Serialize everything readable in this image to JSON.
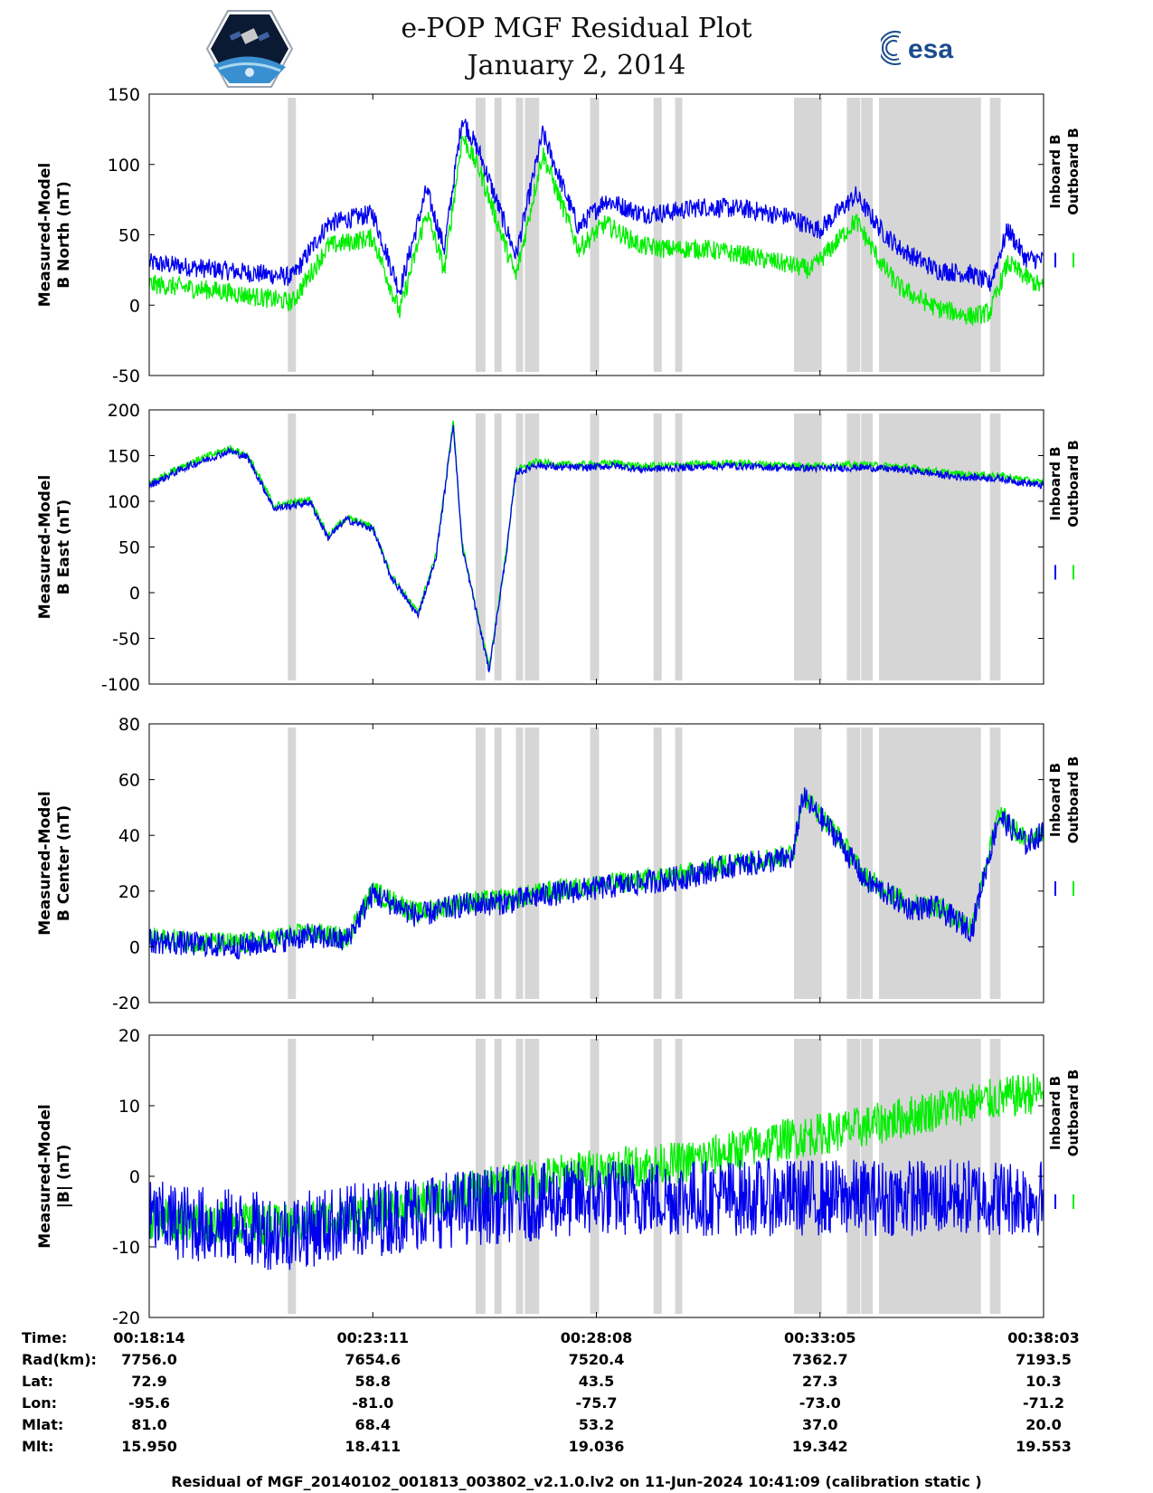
{
  "title": "e-POP MGF Residual Plot",
  "subtitle": "January 2, 2014",
  "logos": {
    "left": "cassiope-mission-patch",
    "right": "esa",
    "right_text": "esa"
  },
  "colors": {
    "inboard": "#0000ee",
    "outboard": "#00ee00",
    "gap": "#d6d6d6",
    "axis": "#000000"
  },
  "legend": {
    "inboard": "Inboard B",
    "outboard": "Outboard B"
  },
  "chart_data": [
    {
      "type": "line",
      "ylabel": [
        "Measured-Model",
        "B North (nT)"
      ],
      "ylim": [
        -50,
        150
      ],
      "yticks": [
        -50,
        0,
        50,
        100,
        150
      ],
      "xlim": [
        0,
        100
      ],
      "series": [
        {
          "name": "Inboard B",
          "color": "#0000ee",
          "x": [
            0,
            8,
            16,
            20,
            25,
            28,
            31,
            33,
            35,
            37,
            41,
            44,
            48,
            51,
            55,
            58,
            62,
            67,
            72,
            74,
            75,
            79,
            82,
            84,
            88,
            92,
            94,
            96,
            98,
            100
          ],
          "y": [
            30,
            25,
            20,
            58,
            65,
            10,
            82,
            40,
            133,
            107,
            35,
            122,
            55,
            75,
            65,
            66,
            70,
            68,
            62,
            55,
            54,
            78,
            52,
            40,
            25,
            22,
            15,
            54,
            33,
            32
          ],
          "noise": 7
        },
        {
          "name": "Outboard B",
          "color": "#00ee00",
          "x": [
            0,
            8,
            16,
            20,
            25,
            28,
            31,
            33,
            35,
            37,
            41,
            44,
            48,
            51,
            55,
            58,
            62,
            67,
            72,
            74,
            75,
            79,
            82,
            84,
            88,
            92,
            94,
            96,
            98,
            100
          ],
          "y": [
            15,
            10,
            2,
            42,
            48,
            -5,
            66,
            25,
            120,
            95,
            20,
            108,
            40,
            58,
            42,
            40,
            40,
            35,
            28,
            25,
            32,
            60,
            28,
            12,
            -2,
            -8,
            -5,
            30,
            20,
            12
          ],
          "noise": 7
        }
      ]
    },
    {
      "type": "line",
      "ylabel": [
        "Measured-Model",
        "B East (nT)"
      ],
      "ylim": [
        -100,
        200
      ],
      "yticks": [
        -100,
        -50,
        0,
        50,
        100,
        150,
        200
      ],
      "xlim": [
        0,
        100
      ],
      "series": [
        {
          "name": "Outboard B",
          "color": "#00ee00",
          "x": [
            0,
            4,
            9,
            11,
            14,
            18,
            20,
            22,
            25,
            27,
            30,
            32,
            33,
            34,
            35,
            38,
            40,
            41,
            42,
            43,
            46,
            49,
            52,
            55,
            60,
            65,
            70,
            75,
            80,
            85,
            90,
            95,
            100
          ],
          "y": [
            120,
            140,
            158,
            150,
            95,
            102,
            62,
            82,
            72,
            20,
            -22,
            38,
            110,
            188,
            52,
            -82,
            50,
            135,
            137,
            143,
            140,
            140,
            142,
            138,
            140,
            142,
            140,
            139,
            140,
            137,
            130,
            128,
            120
          ],
          "noise": 4
        },
        {
          "name": "Inboard B",
          "color": "#0000ee",
          "x": [
            0,
            4,
            9,
            11,
            14,
            18,
            20,
            22,
            25,
            27,
            30,
            32,
            33,
            34,
            35,
            38,
            40,
            41,
            42,
            43,
            46,
            49,
            52,
            55,
            60,
            65,
            70,
            75,
            80,
            85,
            90,
            95,
            100
          ],
          "y": [
            117,
            137,
            155,
            148,
            92,
            99,
            60,
            80,
            70,
            18,
            -25,
            35,
            108,
            185,
            50,
            -85,
            48,
            132,
            134,
            140,
            137,
            137,
            139,
            135,
            137,
            139,
            137,
            136,
            137,
            134,
            127,
            125,
            117
          ],
          "noise": 4
        }
      ]
    },
    {
      "type": "line",
      "ylabel": [
        "Measured-Model",
        "B Center (nT)"
      ],
      "ylim": [
        -20,
        80
      ],
      "yticks": [
        -20,
        0,
        20,
        40,
        60,
        80
      ],
      "xlim": [
        0,
        100
      ],
      "series": [
        {
          "name": "Outboard B",
          "color": "#00ee00",
          "x": [
            0,
            10,
            18,
            22,
            25,
            30,
            35,
            40,
            45,
            50,
            55,
            60,
            65,
            70,
            72,
            73,
            77,
            80,
            85,
            88,
            92,
            93,
            95,
            98,
            100
          ],
          "y": [
            3,
            1,
            5,
            3,
            20,
            12,
            16,
            17,
            20,
            22,
            24,
            26,
            30,
            32,
            33,
            55,
            40,
            25,
            15,
            15,
            7,
            22,
            48,
            38,
            42
          ],
          "noise": 4
        },
        {
          "name": "Inboard B",
          "color": "#0000ee",
          "x": [
            0,
            10,
            18,
            22,
            25,
            30,
            35,
            40,
            45,
            50,
            55,
            60,
            65,
            70,
            72,
            73,
            77,
            80,
            85,
            88,
            92,
            93,
            95,
            98,
            100
          ],
          "y": [
            2,
            0,
            4,
            2,
            19,
            11,
            15,
            16,
            19,
            21,
            23,
            25,
            29,
            31,
            32,
            54,
            39,
            24,
            14,
            14,
            6,
            21,
            47,
            37,
            41
          ],
          "noise": 4.5
        }
      ]
    },
    {
      "type": "line",
      "ylabel": [
        "Measured-Model",
        "|B| (nT)"
      ],
      "ylim": [
        -20,
        20
      ],
      "yticks": [
        -20,
        -10,
        0,
        10,
        20
      ],
      "xlim": [
        0,
        100
      ],
      "series": [
        {
          "name": "Outboard B",
          "color": "#00ee00",
          "x": [
            0,
            15,
            30,
            40,
            50,
            60,
            70,
            80,
            90,
            100
          ],
          "y": [
            -6,
            -7,
            -4,
            -1,
            1,
            2,
            5,
            7,
            10,
            12
          ],
          "noise": 3
        },
        {
          "name": "Inboard B",
          "color": "#0000ee",
          "x": [
            0,
            15,
            30,
            40,
            50,
            60,
            70,
            80,
            90,
            100
          ],
          "y": [
            -6,
            -8,
            -5,
            -4,
            -3,
            -3,
            -3,
            -3,
            -3,
            -3
          ],
          "noise": 5.5
        }
      ]
    }
  ],
  "data_gaps": [
    [
      15.5,
      16.4
    ],
    [
      36.5,
      37.6
    ],
    [
      38.6,
      39.4
    ],
    [
      41.0,
      41.8
    ],
    [
      42.0,
      43.6
    ],
    [
      49.3,
      50.3
    ],
    [
      56.4,
      57.3
    ],
    [
      58.8,
      59.6
    ],
    [
      72.1,
      75.2
    ],
    [
      78.0,
      79.5
    ],
    [
      79.6,
      80.9
    ],
    [
      81.6,
      93.0
    ],
    [
      94.0,
      95.2
    ]
  ],
  "annotations": {
    "labels": [
      "Time:",
      "Rad(km):",
      "Lat:",
      "Lon:",
      "Mlat:",
      "Mlt:"
    ],
    "columns": [
      [
        "00:18:14",
        "7756.0",
        "72.9",
        "-95.6",
        "81.0",
        "15.950"
      ],
      [
        "00:23:11",
        "7654.6",
        "58.8",
        "-81.0",
        "68.4",
        "18.411"
      ],
      [
        "00:28:08",
        "7520.4",
        "43.5",
        "-75.7",
        "53.2",
        "19.036"
      ],
      [
        "00:33:05",
        "7362.7",
        "27.3",
        "-73.0",
        "37.0",
        "19.342"
      ],
      [
        "00:38:03",
        "7193.5",
        "10.3",
        "-71.2",
        "20.0",
        "19.553"
      ]
    ],
    "x_positions": [
      0,
      25,
      50,
      75,
      100
    ]
  },
  "footer": "Residual of MGF_20140102_001813_003802_v2.1.0.lv2 on 11-Jun-2024 10:41:09 (calibration static )"
}
